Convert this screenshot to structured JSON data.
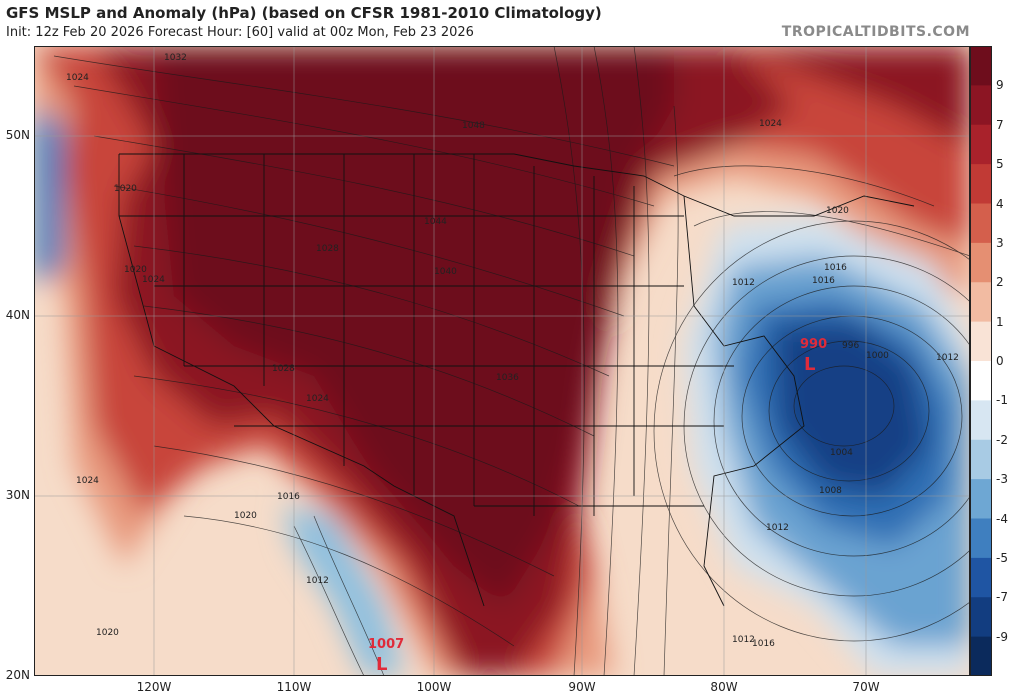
{
  "header": {
    "title": "GFS MSLP and Anomaly (hPa) (based on CFSR 1981-2010 Climatology)",
    "subtitle": "Init: 12z Feb 20 2026   Forecast Hour: [60]   valid at 00z Mon, Feb 23 2026",
    "brand": "TROPICALTIDBITS.COM"
  },
  "lat_labels": [
    "50N",
    "40N",
    "30N",
    "20N"
  ],
  "lon_labels": [
    "120W",
    "110W",
    "100W",
    "90W",
    "80W",
    "70W"
  ],
  "colorbar": {
    "labels": [
      "9",
      "7",
      "5",
      "4",
      "3",
      "2",
      "1",
      "0",
      "-1",
      "-2",
      "-3",
      "-4",
      "-5",
      "-7",
      "-9"
    ],
    "colors": [
      "#6e0d1c",
      "#8c1523",
      "#a9222b",
      "#c13a35",
      "#d45f4c",
      "#e58f72",
      "#f2bba2",
      "#f9e3d6",
      "#ffffff",
      "#d7e6f2",
      "#a8cbe4",
      "#6ea7d3",
      "#3f7fbf",
      "#1f55a3",
      "#123d80",
      "#0b2a5c"
    ]
  },
  "lows": [
    {
      "label": "L",
      "value": "990"
    },
    {
      "label": "L",
      "value": "1007"
    }
  ],
  "isobar_labels": [
    "1032",
    "1024",
    "1048",
    "1020",
    "1020",
    "1024",
    "1028",
    "1044",
    "1040",
    "1028",
    "1024",
    "1036",
    "1016",
    "1012",
    "1012",
    "1016",
    "1020",
    "1024",
    "1004",
    "1008",
    "1012",
    "1016",
    "996",
    "1000",
    "1012",
    "1020",
    "1024",
    "1020",
    "1012",
    "1016"
  ]
}
